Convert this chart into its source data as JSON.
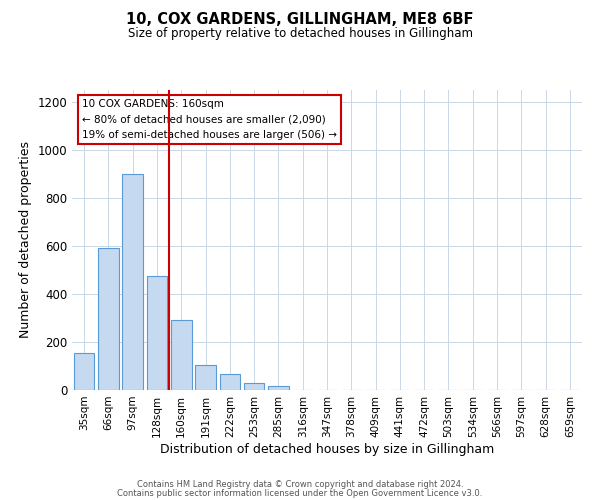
{
  "title": "10, COX GARDENS, GILLINGHAM, ME8 6BF",
  "subtitle": "Size of property relative to detached houses in Gillingham",
  "xlabel": "Distribution of detached houses by size in Gillingham",
  "ylabel": "Number of detached properties",
  "bar_labels": [
    "35sqm",
    "66sqm",
    "97sqm",
    "128sqm",
    "160sqm",
    "191sqm",
    "222sqm",
    "253sqm",
    "285sqm",
    "316sqm",
    "347sqm",
    "378sqm",
    "409sqm",
    "441sqm",
    "472sqm",
    "503sqm",
    "534sqm",
    "566sqm",
    "597sqm",
    "628sqm",
    "659sqm"
  ],
  "bar_values": [
    155,
    590,
    900,
    475,
    290,
    105,
    65,
    28,
    15,
    0,
    0,
    0,
    0,
    0,
    0,
    0,
    0,
    0,
    0,
    0,
    0
  ],
  "bar_color": "#c5d9f0",
  "bar_edge_color": "#5b9bd5",
  "vline_color": "#cc0000",
  "vline_index": 3.5,
  "ylim": [
    0,
    1250
  ],
  "yticks": [
    0,
    200,
    400,
    600,
    800,
    1000,
    1200
  ],
  "annotation_title": "10 COX GARDENS: 160sqm",
  "annotation_line1": "← 80% of detached houses are smaller (2,090)",
  "annotation_line2": "19% of semi-detached houses are larger (506) →",
  "annotation_box_color": "#ffffff",
  "annotation_box_edgecolor": "#cc0000",
  "footer_line1": "Contains HM Land Registry data © Crown copyright and database right 2024.",
  "footer_line2": "Contains public sector information licensed under the Open Government Licence v3.0.",
  "background_color": "#ffffff",
  "grid_color": "#c8d8e8"
}
